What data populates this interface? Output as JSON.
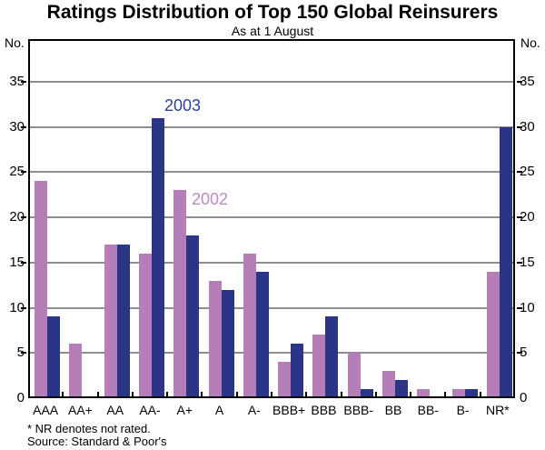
{
  "title": "Ratings Distribution of Top 150 Global Reinsurers",
  "subtitle": "As at 1 August",
  "y_axis": {
    "left_unit": "No.",
    "right_unit": "No."
  },
  "footnotes": [
    "* NR denotes not rated.",
    "Source: Standard & Poor's"
  ],
  "colors": {
    "series_2002": "#B57EB8",
    "series_2003": "#2A3685",
    "label_2002": "#BD88C3",
    "label_2003": "#2B3F9B",
    "gridline": "#8e8e8e",
    "axis": "#000000"
  },
  "chart_data": {
    "type": "bar",
    "title": "Ratings Distribution of Top 150 Global Reinsurers",
    "subtitle": "As at 1 August",
    "ylabel": "No.",
    "categories": [
      "AAA",
      "AA+",
      "AA",
      "AA-",
      "A+",
      "A",
      "A-",
      "BBB+",
      "BBB",
      "BBB-",
      "BB",
      "BB-",
      "B-",
      "NR*"
    ],
    "series": [
      {
        "name": "2002",
        "color": "#B57EB8",
        "values": [
          24,
          6,
          17,
          16,
          23,
          13,
          16,
          4,
          7,
          5,
          3,
          1,
          1,
          14
        ]
      },
      {
        "name": "2003",
        "color": "#2A3685",
        "values": [
          9,
          0,
          17,
          31,
          18,
          12,
          14,
          6,
          9,
          1,
          2,
          0,
          1,
          30
        ]
      }
    ],
    "ylim": [
      0,
      39.7
    ],
    "yticks": [
      0,
      5,
      10,
      15,
      20,
      25,
      30,
      35
    ],
    "grid": true,
    "legend_position": "inline-annotations",
    "annotations": [
      {
        "text": "2003",
        "color": "#2B3F9B",
        "near": "AA- 2003 bar"
      },
      {
        "text": "2002",
        "color": "#BD88C3",
        "near": "A+ 2002 bar"
      }
    ]
  }
}
